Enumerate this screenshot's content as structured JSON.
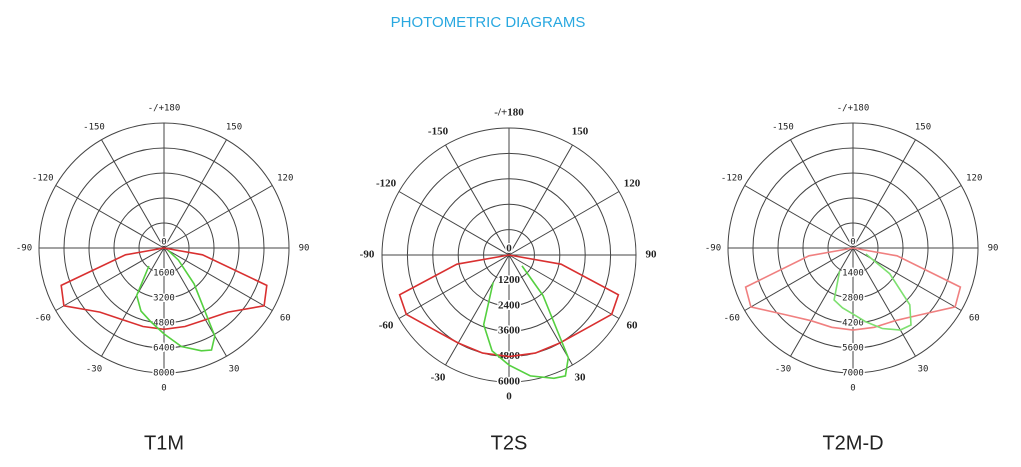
{
  "title": "PHOTOMETRIC DIAGRAMS",
  "chart_data": [
    {
      "type": "polar",
      "title": "T1M",
      "rlim": [
        0,
        8000
      ],
      "rticks": [
        0,
        1600,
        3200,
        4800,
        6400,
        8000
      ],
      "angle_ticks": [
        {
          "value": 180,
          "label": "-/+180"
        },
        150,
        120,
        90,
        60,
        30,
        0,
        -30,
        -60,
        -90,
        -120,
        -150
      ],
      "series": [
        {
          "color": "#d93030",
          "theta": [
            -90,
            -80,
            -70,
            -60,
            -45,
            -30,
            -15,
            0,
            15,
            30,
            45,
            60,
            70,
            80,
            90
          ],
          "values": [
            0,
            2500,
            7000,
            7400,
            5800,
            5300,
            5200,
            5200,
            5200,
            5300,
            5800,
            7400,
            7000,
            2500,
            0
          ]
        },
        {
          "color": "#55d040",
          "theta": [
            -40,
            -30,
            -20,
            -10,
            0,
            10,
            20,
            25,
            30,
            40,
            50,
            60
          ],
          "values": [
            1500,
            3500,
            4300,
            4800,
            5500,
            6400,
            7000,
            7200,
            6500,
            3000,
            1200,
            300
          ]
        }
      ]
    },
    {
      "type": "polar",
      "title": "T2S",
      "rlim": [
        0,
        6000
      ],
      "rticks": [
        0,
        1200,
        2400,
        3600,
        4800,
        6000
      ],
      "angle_ticks": [
        {
          "value": 180,
          "label": "-/+180"
        },
        150,
        120,
        90,
        60,
        30,
        0,
        -30,
        -60,
        -90,
        -120,
        -150
      ],
      "series": [
        {
          "color": "#d93030",
          "theta": [
            -90,
            -80,
            -70,
            -60,
            -45,
            -30,
            -15,
            0,
            15,
            30,
            45,
            60,
            70,
            80,
            90
          ],
          "values": [
            0,
            2500,
            5500,
            5600,
            5000,
            4800,
            4800,
            4800,
            4800,
            4800,
            5000,
            5600,
            5500,
            2500,
            0
          ]
        },
        {
          "color": "#55d040",
          "theta": [
            -30,
            -20,
            -10,
            0,
            10,
            20,
            25,
            30,
            40,
            50
          ],
          "values": [
            1500,
            3500,
            4600,
            5200,
            5800,
            6200,
            6300,
            5600,
            2500,
            800
          ]
        }
      ]
    },
    {
      "type": "polar",
      "title": "T2M-D",
      "rlim": [
        0,
        7000
      ],
      "rticks": [
        0,
        1400,
        2800,
        4200,
        5600,
        7000
      ],
      "angle_ticks": [
        {
          "value": 180,
          "label": "-/+180"
        },
        150,
        120,
        90,
        60,
        30,
        0,
        -30,
        -60,
        -90,
        -120,
        -150
      ],
      "series": [
        {
          "color": "#f08080",
          "theta": [
            -90,
            -80,
            -70,
            -60,
            -45,
            -30,
            -15,
            0,
            15,
            30,
            45,
            60,
            70,
            80,
            90
          ],
          "values": [
            0,
            2500,
            6400,
            6600,
            5300,
            4700,
            4600,
            4600,
            4600,
            4700,
            5300,
            6600,
            6400,
            2500,
            0
          ]
        },
        {
          "color": "#7ee070",
          "theta": [
            -30,
            -20,
            -10,
            0,
            10,
            20,
            30,
            37,
            45,
            55,
            65
          ],
          "values": [
            1500,
            3100,
            3400,
            3700,
            4200,
            4800,
            5300,
            5400,
            4500,
            2500,
            800
          ]
        }
      ]
    }
  ]
}
